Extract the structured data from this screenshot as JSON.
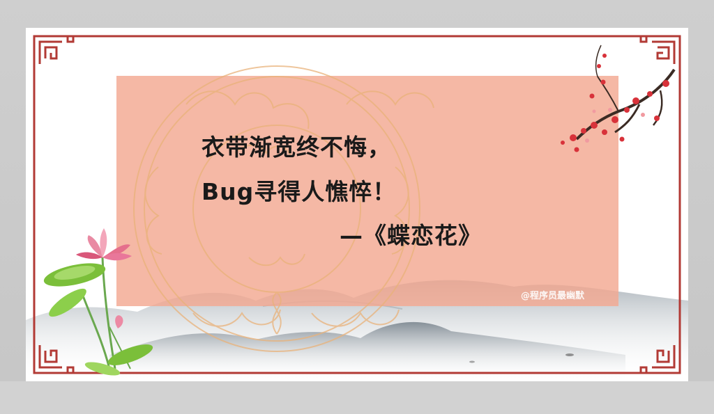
{
  "poem": {
    "line1": "衣带渐宽终不悔，",
    "line2": "Bug寻得人憔悴！",
    "attribution": "—《蝶恋花》"
  },
  "watermark": "@程序员最幽默",
  "colors": {
    "background": "#c9c9c9",
    "card": "#ffffff",
    "frame": "#b23a35",
    "panel": "#f3a891",
    "text": "#1a1a1a",
    "lotus": "#e56f8c",
    "leaf": "#7bbf3a",
    "blossom": "#d8323a"
  },
  "icons": [
    "cloud-medallion-pattern",
    "ink-mountain-landscape",
    "lotus-flower-icon",
    "plum-blossom-branch-icon",
    "chinese-lattice-frame"
  ]
}
